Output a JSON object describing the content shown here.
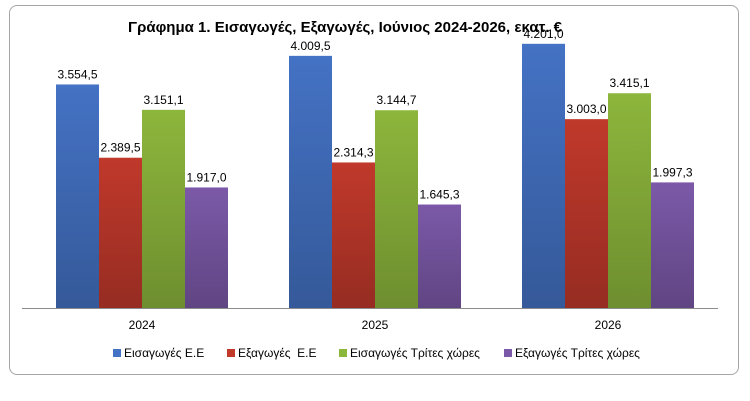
{
  "chart_data": {
    "type": "bar",
    "title": "Γράφημα 1. Εισαγωγές, Εξαγωγές, Ιούνιος 2024-2026, εκατ. €",
    "categories": [
      "2024",
      "2025",
      "2026"
    ],
    "series": [
      {
        "name": "Εισαγωγές Ε.Ε",
        "values": [
          3554.5,
          4009.5,
          4201.0
        ],
        "labels": [
          "3.554,5",
          "4.009,5",
          "4.201,0"
        ],
        "color": "#4472C4"
      },
      {
        "name": "Εξαγωγές  Ε.Ε",
        "values": [
          2389.5,
          2314.3,
          3003.0
        ],
        "labels": [
          "2.389,5",
          "2.314,3",
          "3.003,0"
        ],
        "color": "#C0392B"
      },
      {
        "name": "Εισαγωγές Τρίτες χώρες",
        "values": [
          3151.1,
          3144.7,
          3415.1
        ],
        "labels": [
          "3.151,1",
          "3.144,7",
          "3.415,1"
        ],
        "color": "#8DB63C"
      },
      {
        "name": "Εξαγωγές Τρίτες χώρες",
        "values": [
          1917.0,
          1645.3,
          1997.3
        ],
        "labels": [
          "1.917,0",
          "1.645,3",
          "1.997,3"
        ],
        "color": "#7B59A8"
      }
    ],
    "ylim": [
      0,
      4500
    ],
    "xlabel": "",
    "ylabel": "",
    "grid": false,
    "legend": "bottom"
  }
}
